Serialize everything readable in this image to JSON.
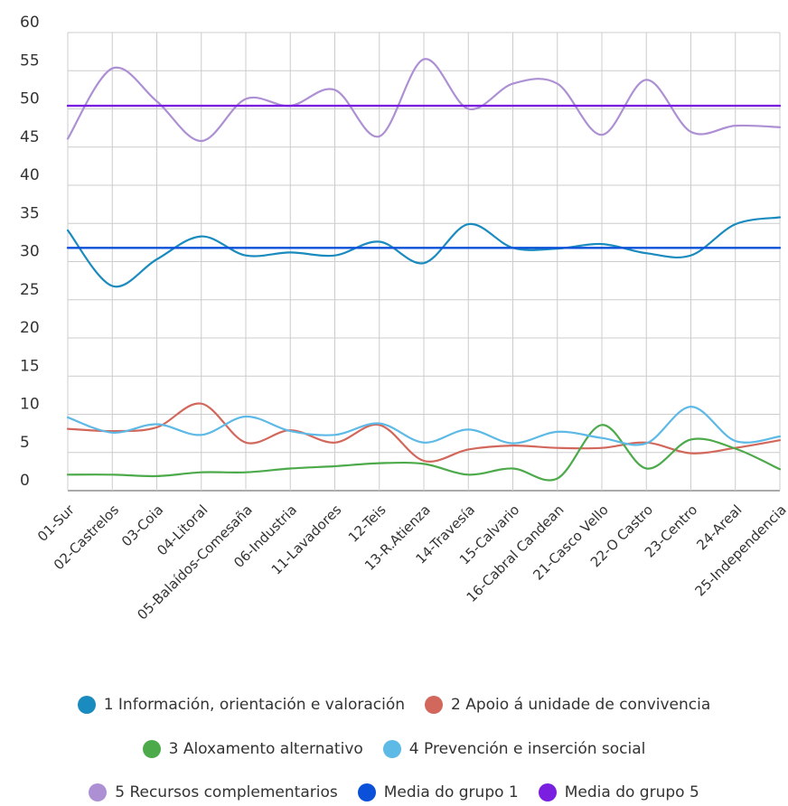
{
  "chart_data": {
    "type": "line",
    "categories": [
      "01-Sur",
      "02-Castrelos",
      "03-Coia",
      "04-Litoral",
      "05-Balaídos-Comesaña",
      "06-Industria",
      "11-Lavadores",
      "12-Teis",
      "13-R.Atienza",
      "14-Travesía",
      "15-Calvario",
      "16-Cabral Candean",
      "21-Casco Vello",
      "22-O Castro",
      "23-Centro",
      "24-Areal",
      "25-Independencia"
    ],
    "ylim": [
      0,
      60
    ],
    "yticks": [
      0,
      5,
      10,
      15,
      20,
      25,
      30,
      35,
      40,
      45,
      50,
      55,
      60
    ],
    "grid": true,
    "legend_position": "bottom",
    "series": [
      {
        "name": "1 Información, orientación e valoración",
        "color": "#1a8bbf",
        "smooth": true,
        "values": [
          34.1,
          26.8,
          30.3,
          33.3,
          30.8,
          31.2,
          30.8,
          32.6,
          29.8,
          34.9,
          31.8,
          31.7,
          32.3,
          31.1,
          30.8,
          34.9,
          35.8
        ]
      },
      {
        "name": "2 Apoio á unidade de convivencia",
        "color": "#d2675c",
        "smooth": true,
        "values": [
          8.1,
          7.8,
          8.3,
          11.4,
          6.3,
          7.9,
          6.3,
          8.6,
          3.9,
          5.4,
          5.9,
          5.6,
          5.6,
          6.3,
          4.9,
          5.6,
          6.6
        ]
      },
      {
        "name": "3 Aloxamento alternativo",
        "color": "#4caa4b",
        "smooth": true,
        "values": [
          2.1,
          2.1,
          1.9,
          2.4,
          2.4,
          2.9,
          3.2,
          3.6,
          3.5,
          2.1,
          2.9,
          1.6,
          8.6,
          2.9,
          6.7,
          5.5,
          2.8
        ]
      },
      {
        "name": "4 Prevención e inserción social",
        "color": "#5db9e6",
        "smooth": true,
        "values": [
          9.6,
          7.6,
          8.7,
          7.3,
          9.7,
          7.8,
          7.3,
          8.8,
          6.3,
          8.0,
          6.2,
          7.7,
          6.9,
          6.2,
          11.0,
          6.5,
          7.1
        ]
      },
      {
        "name": "5 Recursos complementarios",
        "color": "#ad90d4",
        "smooth": true,
        "values": [
          46.1,
          55.3,
          51.0,
          45.8,
          51.3,
          50.4,
          52.5,
          46.4,
          56.5,
          50.0,
          53.3,
          53.3,
          46.6,
          53.8,
          47.0,
          47.8,
          47.6
        ]
      },
      {
        "name": "Media do grupo 1",
        "color": "#0b50d8",
        "smooth": false,
        "values": [
          31.8,
          31.8,
          31.8,
          31.8,
          31.8,
          31.8,
          31.8,
          31.8,
          31.8,
          31.8,
          31.8,
          31.8,
          31.8,
          31.8,
          31.8,
          31.8,
          31.8
        ]
      },
      {
        "name": "Media do grupo 5",
        "color": "#7a1ee0",
        "smooth": false,
        "values": [
          50.4,
          50.4,
          50.4,
          50.4,
          50.4,
          50.4,
          50.4,
          50.4,
          50.4,
          50.4,
          50.4,
          50.4,
          50.4,
          50.4,
          50.4,
          50.4,
          50.4
        ]
      }
    ]
  },
  "legend": [
    [
      "1 Información, orientación e valoración",
      "2 Apoio á unidade de convivencia"
    ],
    [
      "3 Aloxamento alternativo",
      "4 Prevención e inserción social"
    ],
    [
      "5 Recursos complementarios",
      "Media do grupo 1",
      "Media do grupo 5"
    ]
  ]
}
